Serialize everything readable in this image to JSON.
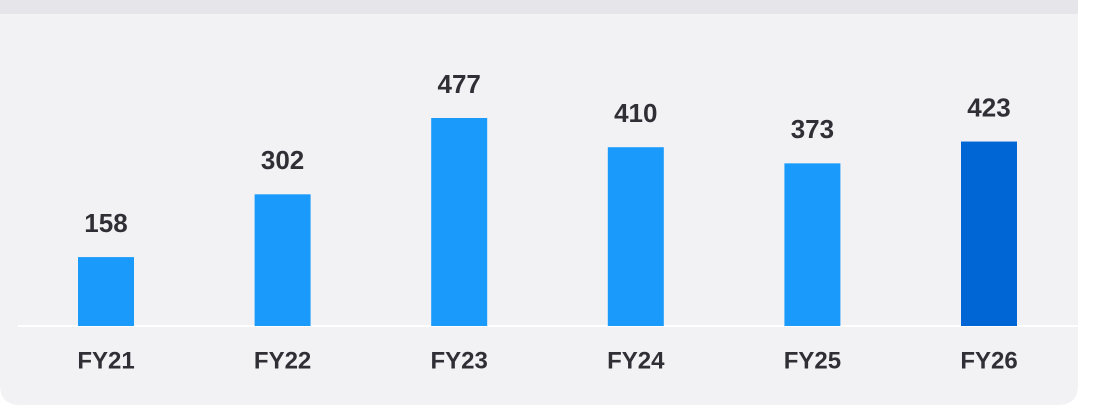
{
  "chart_data": {
    "type": "bar",
    "categories": [
      "FY21",
      "FY22",
      "FY23",
      "FY24",
      "FY25",
      "FY26"
    ],
    "values": [
      158,
      302,
      477,
      410,
      373,
      423
    ],
    "colors": [
      "#1a9bfc",
      "#1a9bfc",
      "#1a9bfc",
      "#1a9bfc",
      "#1a9bfc",
      "#0066d6"
    ]
  }
}
